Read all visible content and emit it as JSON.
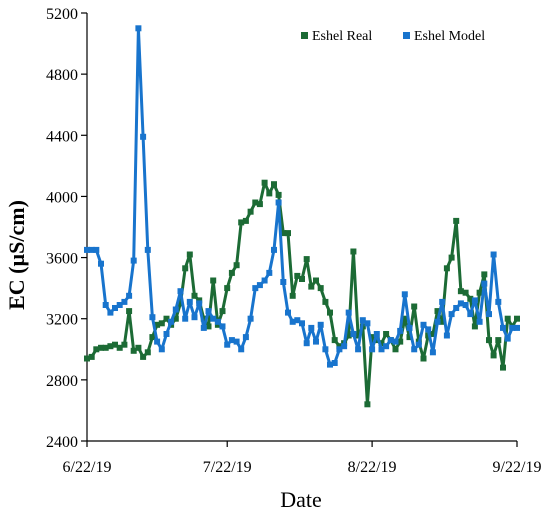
{
  "chart_data": {
    "type": "line",
    "title": "",
    "xlabel": "Date",
    "ylabel": "EC (µS/cm)",
    "ylim": [
      2400,
      5200
    ],
    "xlim": [
      "2019-06-22",
      "2019-09-22"
    ],
    "y_ticks": [
      2400,
      2800,
      3200,
      3600,
      4000,
      4400,
      4800,
      5200
    ],
    "x_ticks": [
      {
        "date": "2019-06-22",
        "label": "6/22/19"
      },
      {
        "date": "2019-07-22",
        "label": "7/22/19"
      },
      {
        "date": "2019-08-22",
        "label": "8/22/19"
      },
      {
        "date": "2019-09-22",
        "label": "9/22/19"
      }
    ],
    "grid": false,
    "legend_position": "top-right",
    "x": [
      "2019-06-22",
      "2019-06-23",
      "2019-06-24",
      "2019-06-25",
      "2019-06-26",
      "2019-06-27",
      "2019-06-28",
      "2019-06-29",
      "2019-06-30",
      "2019-07-01",
      "2019-07-02",
      "2019-07-03",
      "2019-07-04",
      "2019-07-05",
      "2019-07-06",
      "2019-07-07",
      "2019-07-08",
      "2019-07-09",
      "2019-07-10",
      "2019-07-11",
      "2019-07-12",
      "2019-07-13",
      "2019-07-14",
      "2019-07-15",
      "2019-07-16",
      "2019-07-17",
      "2019-07-18",
      "2019-07-19",
      "2019-07-20",
      "2019-07-21",
      "2019-07-22",
      "2019-07-23",
      "2019-07-24",
      "2019-07-25",
      "2019-07-26",
      "2019-07-27",
      "2019-07-28",
      "2019-07-29",
      "2019-07-30",
      "2019-07-31",
      "2019-08-01",
      "2019-08-02",
      "2019-08-03",
      "2019-08-04",
      "2019-08-05",
      "2019-08-06",
      "2019-08-07",
      "2019-08-08",
      "2019-08-09",
      "2019-08-10",
      "2019-08-11",
      "2019-08-12",
      "2019-08-13",
      "2019-08-14",
      "2019-08-15",
      "2019-08-16",
      "2019-08-17",
      "2019-08-18",
      "2019-08-19",
      "2019-08-20",
      "2019-08-21",
      "2019-08-22",
      "2019-08-23",
      "2019-08-24",
      "2019-08-25",
      "2019-08-26",
      "2019-08-27",
      "2019-08-28",
      "2019-08-29",
      "2019-08-30",
      "2019-08-31",
      "2019-09-01",
      "2019-09-02",
      "2019-09-03",
      "2019-09-04",
      "2019-09-05",
      "2019-09-06",
      "2019-09-07",
      "2019-09-08",
      "2019-09-09",
      "2019-09-10",
      "2019-09-11",
      "2019-09-12",
      "2019-09-13",
      "2019-09-14",
      "2019-09-15",
      "2019-09-16",
      "2019-09-17",
      "2019-09-18",
      "2019-09-19",
      "2019-09-20",
      "2019-09-21",
      "2019-09-22"
    ],
    "series": [
      {
        "name": "Eshel Real",
        "color": "#1c6b35",
        "values": [
          2940,
          2950,
          3000,
          3010,
          3010,
          3020,
          3030,
          3010,
          3030,
          3250,
          2990,
          3010,
          2950,
          2980,
          3080,
          3160,
          3170,
          3200,
          3160,
          3200,
          3300,
          3530,
          3620,
          3350,
          3320,
          3200,
          3150,
          3450,
          3160,
          3250,
          3400,
          3500,
          3550,
          3830,
          3840,
          3900,
          3960,
          3950,
          4090,
          4020,
          4080,
          4010,
          3760,
          3760,
          3350,
          3480,
          3460,
          3590,
          3410,
          3450,
          3400,
          3310,
          3240,
          3060,
          3020,
          3040,
          3090,
          3640,
          3090,
          3150,
          2640,
          3080,
          3060,
          3040,
          3100,
          3060,
          3000,
          3050,
          3200,
          3080,
          3280,
          3050,
          2940,
          3090,
          3100,
          3250,
          3180,
          3530,
          3600,
          3840,
          3380,
          3370,
          3330,
          3150,
          3370,
          3490,
          3060,
          2960,
          3060,
          2880,
          3200,
          3150,
          3200
        ]
      },
      {
        "name": "Eshel Model",
        "color": "#1874cd",
        "values": [
          3650,
          3650,
          3650,
          3560,
          3290,
          3240,
          3270,
          3290,
          3310,
          3350,
          3580,
          5100,
          4390,
          3650,
          3210,
          3050,
          3000,
          3100,
          3180,
          3260,
          3380,
          3200,
          3310,
          3210,
          3300,
          3140,
          3250,
          3200,
          3180,
          3150,
          3030,
          3060,
          3050,
          3000,
          3080,
          3200,
          3400,
          3420,
          3450,
          3500,
          3650,
          3960,
          3440,
          3240,
          3180,
          3190,
          3170,
          3040,
          3140,
          3050,
          3160,
          3000,
          2900,
          2910,
          3000,
          3020,
          3240,
          3100,
          3000,
          3190,
          3170,
          3000,
          3100,
          3000,
          3020,
          3060,
          3050,
          3120,
          3360,
          3140,
          3000,
          3030,
          3160,
          3130,
          2980,
          3180,
          3310,
          3090,
          3230,
          3270,
          3300,
          3290,
          3230,
          3320,
          3180,
          3430,
          3230,
          3620,
          3310,
          3140,
          3070,
          3140,
          3140
        ]
      }
    ]
  }
}
